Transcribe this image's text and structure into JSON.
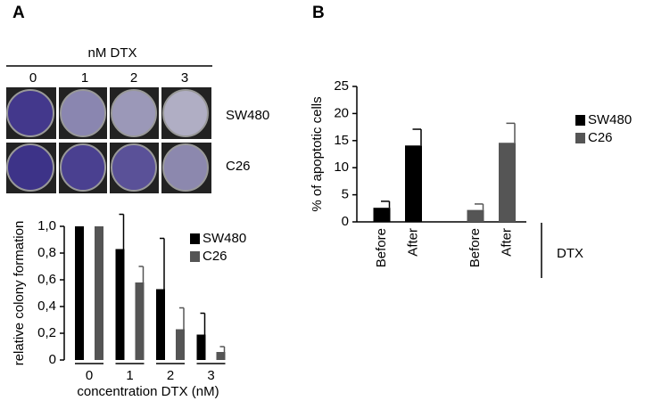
{
  "panel_labels": [
    "A",
    "B"
  ],
  "photo": {
    "title": "nM DTX",
    "columns": [
      "0",
      "1",
      "2",
      "3"
    ],
    "rows": [
      "SW480",
      "C26"
    ]
  },
  "chart_data": [
    {
      "type": "bar",
      "ylabel": "relative colony formation",
      "xlabel": "concentration DTX (nM)",
      "categories": [
        "0",
        "1",
        "2",
        "3"
      ],
      "series": [
        {
          "name": "SW480",
          "color": "#000000",
          "values": [
            1.0,
            0.83,
            0.53,
            0.19
          ],
          "errors": [
            0,
            0.26,
            0.38,
            0.16
          ]
        },
        {
          "name": "C26",
          "color": "#555555",
          "values": [
            1.0,
            0.58,
            0.23,
            0.06
          ],
          "errors": [
            0,
            0.12,
            0.16,
            0.04
          ]
        }
      ],
      "ylim": [
        0,
        1
      ],
      "yticks": [
        0,
        {
          "value": 0.2,
          "label": "0,2"
        },
        {
          "value": 0.4,
          "label": "0,4"
        },
        {
          "value": 0.6,
          "label": "0,6"
        },
        {
          "value": 0.8,
          "label": "0,8"
        },
        {
          "value": 1,
          "label": "1,0"
        }
      ]
    },
    {
      "type": "bar",
      "ylabel": "% of apoptotic cells",
      "group_label": "DTX",
      "categories": [
        "Before",
        "After",
        "Before",
        "After"
      ],
      "series": [
        {
          "name": "SW480",
          "color": "#000000",
          "values": [
            2.6,
            14.1,
            null,
            null
          ],
          "errors": [
            1.2,
            3.0,
            null,
            null
          ]
        },
        {
          "name": "C26",
          "color": "#555555",
          "values": [
            null,
            null,
            2.2,
            14.6
          ],
          "errors": [
            null,
            null,
            1.1,
            3.6
          ]
        }
      ],
      "ylim": [
        0,
        25
      ],
      "yticks": [
        0,
        5,
        10,
        15,
        20,
        25
      ]
    }
  ]
}
